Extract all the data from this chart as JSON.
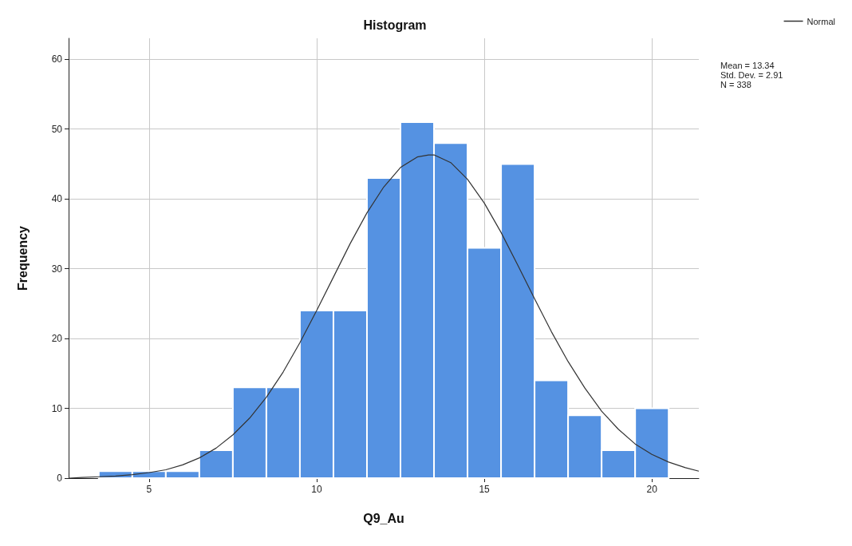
{
  "chart_data": {
    "type": "histogram",
    "title": "Histogram",
    "xlabel": "Q9_Au",
    "ylabel": "Frequency",
    "bins": [
      3.5,
      4.5,
      5.5,
      6.5,
      7.5,
      8.5,
      9.5,
      10.5,
      11.5,
      12.5,
      13.5,
      14.5,
      15.5,
      16.5,
      17.5,
      18.5,
      19.5,
      20.5
    ],
    "values": [
      1,
      1,
      1,
      4,
      13,
      13,
      24,
      24,
      43,
      51,
      48,
      33,
      45,
      14,
      9,
      4,
      10
    ],
    "color": "#5592e2",
    "series": [
      {
        "name": "Normal",
        "type": "line",
        "color": "#333333",
        "marker": "none",
        "x": [
          2.6,
          3,
          3.5,
          4,
          4.5,
          5,
          5.5,
          6,
          6.5,
          7,
          7.5,
          8,
          8.5,
          9,
          9.5,
          10,
          10.5,
          11,
          11.5,
          12,
          12.5,
          13,
          13.34,
          13.5,
          14,
          14.5,
          15,
          15.5,
          16,
          16.5,
          17,
          17.5,
          18,
          18.5,
          19,
          19.5,
          20,
          20.5,
          21,
          21.4
        ],
        "values": [
          0,
          0.1,
          0.2,
          0.3,
          0.5,
          0.8,
          1.2,
          1.9,
          2.9,
          4.3,
          6.2,
          8.6,
          11.6,
          15.2,
          19.4,
          24,
          28.8,
          33.6,
          38,
          41.7,
          44.5,
          46,
          46.3,
          46.3,
          45.2,
          42.8,
          39.4,
          35.2,
          30.5,
          25.7,
          21,
          16.7,
          12.9,
          9.6,
          7,
          4.9,
          3.4,
          2.3,
          1.5,
          1
        ]
      }
    ],
    "xlim": [
      2.6,
      21.4
    ],
    "xticks": [
      5,
      10,
      15,
      20
    ],
    "ylim": [
      0,
      63
    ],
    "yticks": [
      0,
      10,
      20,
      30,
      40,
      50,
      60
    ],
    "grid": true,
    "legend": "top right",
    "annotations": [
      "Mean = 13.34",
      "Std. Dev. = 2.91",
      "N = 338"
    ]
  }
}
